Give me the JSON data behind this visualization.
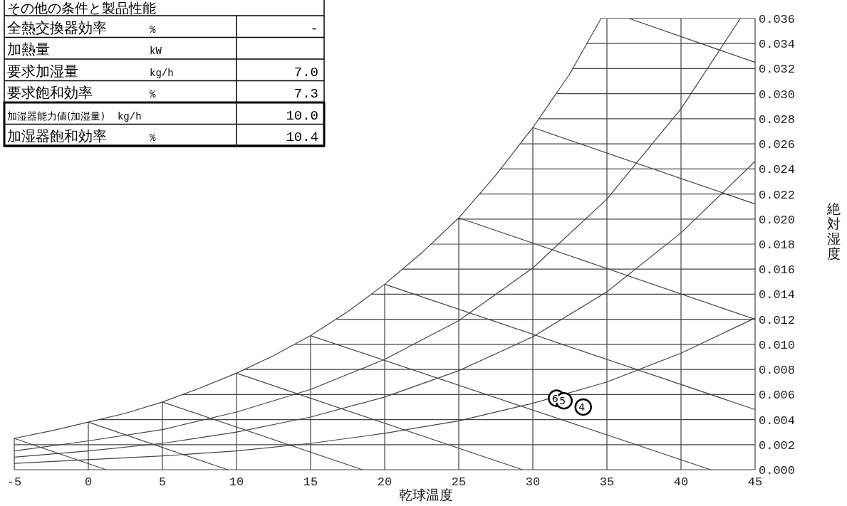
{
  "chart_data": {
    "type": "line",
    "xlabel": "乾球温度",
    "ylabel": "絶対湿度",
    "xlim": [
      -5,
      45
    ],
    "ylim": [
      0,
      0.036
    ],
    "xticks": [
      -5,
      0,
      5,
      10,
      15,
      20,
      25,
      30,
      35,
      40,
      45
    ],
    "yticks": [
      {
        "value": 0,
        "label": "0.000"
      },
      {
        "value": 0.002,
        "label": "0.002"
      },
      {
        "value": 0.004,
        "label": "0.004"
      },
      {
        "value": 0.006,
        "label": "0.006"
      },
      {
        "value": 0.008,
        "label": "0.008"
      },
      {
        "value": 0.01,
        "label": "0.010"
      },
      {
        "value": 0.012,
        "label": "0.012"
      },
      {
        "value": 0.014,
        "label": "0.014"
      },
      {
        "value": 0.016,
        "label": "0.016"
      },
      {
        "value": 0.018,
        "label": "0.018"
      },
      {
        "value": 0.02,
        "label": "0.020"
      },
      {
        "value": 0.022,
        "label": "0.022"
      },
      {
        "value": 0.024,
        "label": "0.024"
      },
      {
        "value": 0.026,
        "label": "0.026"
      },
      {
        "value": 0.028,
        "label": "0.028"
      },
      {
        "value": 0.03,
        "label": "0.030"
      },
      {
        "value": 0.032,
        "label": "0.032"
      },
      {
        "value": 0.034,
        "label": "0.034"
      },
      {
        "value": 0.036,
        "label": "0.036"
      }
    ],
    "series": [
      {
        "color": "#444444",
        "x": [
          -5,
          -2.5,
          0,
          2.5,
          5,
          7.5,
          10,
          12.5,
          15,
          17.5,
          20,
          22.5,
          25,
          27.5,
          30,
          32.5,
          34.6
        ],
        "values": [
          0.0025,
          0.0031,
          0.0038,
          0.0045,
          0.0054,
          0.0065,
          0.0077,
          0.0091,
          0.0107,
          0.0126,
          0.0148,
          0.0173,
          0.0201,
          0.0235,
          0.0273,
          0.0316,
          0.036
        ]
      },
      {
        "color": "#444444",
        "x": [
          -5,
          0,
          5,
          10,
          15,
          20,
          25,
          30,
          35,
          40,
          44
        ],
        "values": [
          0.0015,
          0.0023,
          0.0032,
          0.0046,
          0.0064,
          0.0088,
          0.0119,
          0.0161,
          0.0216,
          0.0288,
          0.036
        ]
      },
      {
        "color": "#444444",
        "x": [
          -5,
          0,
          5,
          10,
          15,
          20,
          25,
          30,
          35,
          40,
          45
        ],
        "values": [
          0.001,
          0.0015,
          0.0021,
          0.003,
          0.0042,
          0.0058,
          0.0079,
          0.0106,
          0.0142,
          0.0189,
          0.0246
        ]
      },
      {
        "color": "#444444",
        "x": [
          -5,
          0,
          5,
          10,
          15,
          20,
          25,
          30,
          35,
          40,
          45
        ],
        "values": [
          0.0005,
          0.0008,
          0.0011,
          0.0015,
          0.0021,
          0.0029,
          0.0039,
          0.0053,
          0.007,
          0.0093,
          0.0121
        ]
      },
      {
        "color": "#444444",
        "x": [
          -5,
          1.2
        ],
        "values": [
          0.0025,
          0
        ]
      },
      {
        "color": "#444444",
        "x": [
          0,
          9.4
        ],
        "values": [
          0.0038,
          0
        ]
      },
      {
        "color": "#444444",
        "x": [
          5,
          18.5
        ],
        "values": [
          0.0054,
          0
        ]
      },
      {
        "color": "#444444",
        "x": [
          10,
          29.3
        ],
        "values": [
          0.0077,
          0
        ]
      },
      {
        "color": "#444444",
        "x": [
          15,
          42
        ],
        "values": [
          0.0107,
          0
        ]
      },
      {
        "color": "#444444",
        "x": [
          20,
          45
        ],
        "values": [
          0.0148,
          0.0048
        ]
      },
      {
        "color": "#444444",
        "x": [
          25,
          45
        ],
        "values": [
          0.0201,
          0.012
        ]
      },
      {
        "color": "#444444",
        "x": [
          30,
          45
        ],
        "values": [
          0.0273,
          0.0212
        ]
      },
      {
        "color": "#444444",
        "x": [
          36.5,
          45
        ],
        "values": [
          0.036,
          0.0325
        ]
      },
      {
        "color": "#444444",
        "x": [
          -5,
          -5
        ],
        "values": [
          0,
          0.0025
        ]
      },
      {
        "color": "#444444",
        "x": [
          0,
          0
        ],
        "values": [
          0,
          0.0038
        ]
      },
      {
        "color": "#444444",
        "x": [
          5,
          5
        ],
        "values": [
          0,
          0.0054
        ]
      },
      {
        "color": "#444444",
        "x": [
          10,
          10
        ],
        "values": [
          0,
          0.0077
        ]
      },
      {
        "color": "#444444",
        "x": [
          15,
          15
        ],
        "values": [
          0,
          0.0107
        ]
      },
      {
        "color": "#444444",
        "x": [
          20,
          20
        ],
        "values": [
          0,
          0.0148
        ]
      },
      {
        "color": "#444444",
        "x": [
          25,
          25
        ],
        "values": [
          0,
          0.0201
        ]
      },
      {
        "color": "#444444",
        "x": [
          30,
          30
        ],
        "values": [
          0,
          0.0273
        ]
      },
      {
        "color": "#444444",
        "x": [
          35,
          35
        ],
        "values": [
          0,
          0.036
        ]
      },
      {
        "color": "#444444",
        "x": [
          40,
          40
        ],
        "values": [
          0,
          0.036
        ]
      },
      {
        "color": "#444444",
        "x": [
          45,
          45
        ],
        "values": [
          0,
          0.036
        ]
      },
      {
        "color": "#444444",
        "x": [
          -5,
          45
        ],
        "values": [
          0,
          0
        ]
      },
      {
        "color": "#444444",
        "x": [
          -5,
          45
        ],
        "values": [
          0.002,
          0.002
        ]
      },
      {
        "color": "#444444",
        "x": [
          0.7,
          45
        ],
        "values": [
          0.004,
          0.004
        ]
      },
      {
        "color": "#444444",
        "x": [
          6.4,
          45
        ],
        "values": [
          0.006,
          0.006
        ]
      },
      {
        "color": "#444444",
        "x": [
          10.5,
          45
        ],
        "values": [
          0.008,
          0.008
        ]
      },
      {
        "color": "#444444",
        "x": [
          13.9,
          45
        ],
        "values": [
          0.01,
          0.01
        ]
      },
      {
        "color": "#444444",
        "x": [
          16.7,
          45
        ],
        "values": [
          0.012,
          0.012
        ]
      },
      {
        "color": "#444444",
        "x": [
          19.1,
          45
        ],
        "values": [
          0.014,
          0.014
        ]
      },
      {
        "color": "#444444",
        "x": [
          21.2,
          45
        ],
        "values": [
          0.016,
          0.016
        ]
      },
      {
        "color": "#444444",
        "x": [
          23.1,
          45
        ],
        "values": [
          0.018,
          0.018
        ]
      },
      {
        "color": "#444444",
        "x": [
          24.9,
          45
        ],
        "values": [
          0.02,
          0.02
        ]
      },
      {
        "color": "#444444",
        "x": [
          26.4,
          45
        ],
        "values": [
          0.022,
          0.022
        ]
      },
      {
        "color": "#444444",
        "x": [
          27.8,
          45
        ],
        "values": [
          0.024,
          0.024
        ]
      },
      {
        "color": "#444444",
        "x": [
          29.1,
          45
        ],
        "values": [
          0.026,
          0.026
        ]
      },
      {
        "color": "#444444",
        "x": [
          30.4,
          45
        ],
        "values": [
          0.028,
          0.028
        ]
      },
      {
        "color": "#444444",
        "x": [
          31.6,
          45
        ],
        "values": [
          0.03,
          0.03
        ]
      },
      {
        "color": "#444444",
        "x": [
          32.7,
          45
        ],
        "values": [
          0.032,
          0.032
        ]
      },
      {
        "color": "#444444",
        "x": [
          33.6,
          45
        ],
        "values": [
          0.034,
          0.034
        ]
      },
      {
        "color": "#444444",
        "x": [
          34.6,
          45
        ],
        "values": [
          0.036,
          0.036
        ]
      },
      {
        "type": "scatter",
        "marker": "circle",
        "color": "#000000",
        "x": [
          31.6,
          32.1,
          33.4
        ],
        "values": [
          0.0057,
          0.0055,
          0.005
        ]
      }
    ],
    "annotations": [
      "その他の条件と製品性能",
      "全熱交換器効率\t%\t-",
      "加熱量\tkW",
      "要求加湿量\tkg/h\t7.0",
      "要求飽和効率\t%\t7.3",
      "加湿器能力値(加湿量)\tkg/h\t10.0",
      "加湿器飽和効率\t%\t10.4",
      {
        "text": "6",
        "x": 31.6,
        "y": 0.0057
      },
      {
        "text": "5",
        "x": 32.1,
        "y": 0.0055
      },
      {
        "text": "4",
        "x": 33.4,
        "y": 0.005
      }
    ]
  }
}
